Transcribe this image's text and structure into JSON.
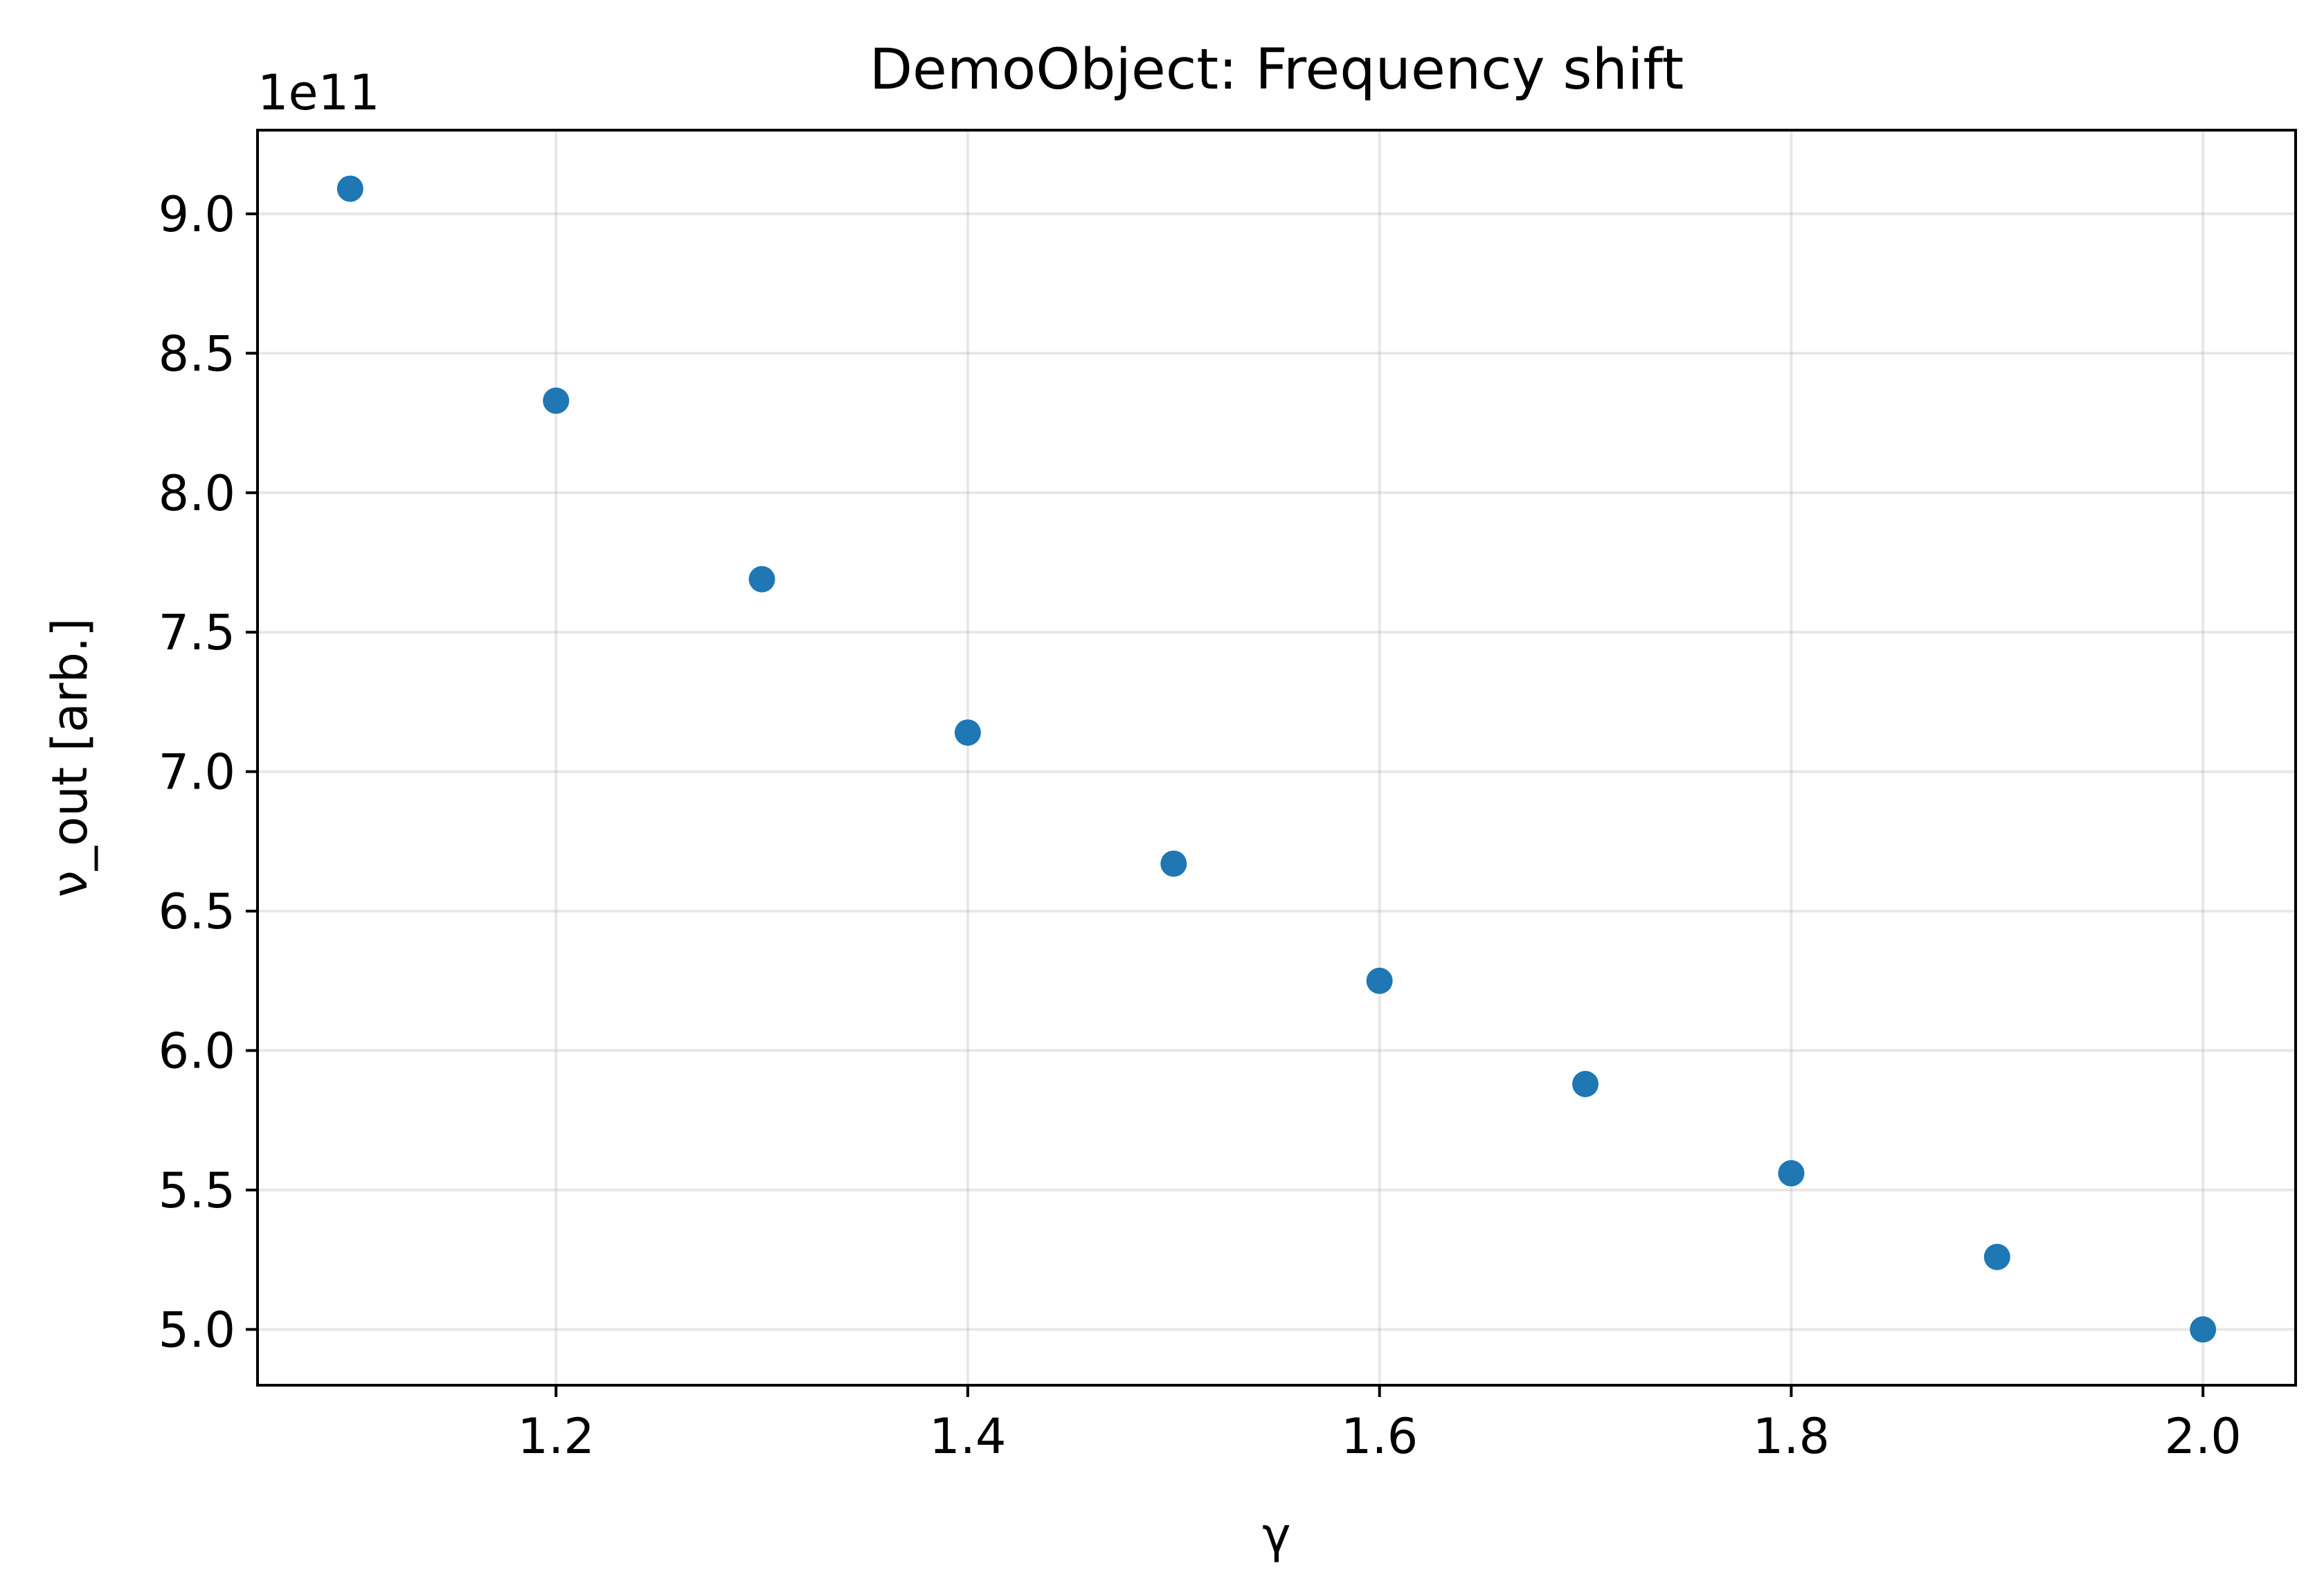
{
  "chart_data": {
    "type": "scatter",
    "title": "DemoObject: Frequency shift",
    "xlabel": "γ",
    "ylabel": "ν_out [arb.]",
    "y_offset_text": "1e11",
    "xlim": [
      1.055,
      2.045
    ],
    "ylim": [
      4.8,
      9.3
    ],
    "y_scale_factor": 100000000000.0,
    "x_ticks": [
      1.2,
      1.4,
      1.6,
      1.8,
      2.0
    ],
    "x_tick_labels": [
      "1.2",
      "1.4",
      "1.6",
      "1.8",
      "2.0"
    ],
    "y_ticks": [
      5.0,
      5.5,
      6.0,
      6.5,
      7.0,
      7.5,
      8.0,
      8.5,
      9.0
    ],
    "y_tick_labels": [
      "5.0",
      "5.5",
      "6.0",
      "6.5",
      "7.0",
      "7.5",
      "8.0",
      "8.5",
      "9.0"
    ],
    "grid": true,
    "marker_color": "#1f77b4",
    "series": [
      {
        "x": [
          1.1,
          1.2,
          1.3,
          1.4,
          1.5,
          1.6,
          1.7,
          1.8,
          1.9,
          2.0
        ],
        "y": [
          9.09,
          8.33,
          7.69,
          7.14,
          6.67,
          6.25,
          5.88,
          5.56,
          5.26,
          5.0
        ]
      }
    ]
  }
}
